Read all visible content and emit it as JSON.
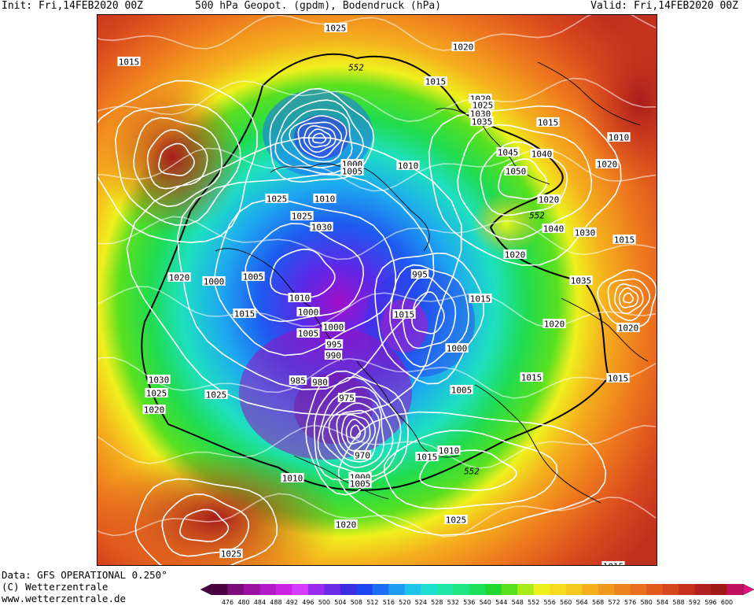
{
  "header": {
    "init": "Init: Fri,14FEB2020 00Z",
    "title": "500 hPa Geopot. (gpdm), Bodendruck (hPa)",
    "valid": "Valid: Fri,14FEB2020 00Z"
  },
  "footer": {
    "data_line": "Data: GFS OPERATIONAL 0.250°",
    "copyright": "(C) Wetterzentrale",
    "url": "www.wetterzentrale.de"
  },
  "legend": {
    "ticks": [
      "476",
      "480",
      "484",
      "488",
      "492",
      "496",
      "500",
      "504",
      "508",
      "512",
      "516",
      "520",
      "524",
      "528",
      "532",
      "536",
      "540",
      "544",
      "548",
      "552",
      "556",
      "560",
      "564",
      "568",
      "572",
      "576",
      "580",
      "584",
      "588",
      "592",
      "596",
      "600"
    ],
    "colors": [
      "#4a0040",
      "#7a0d7a",
      "#9b10a0",
      "#b21ac8",
      "#cc22e6",
      "#d63cff",
      "#9a2cf0",
      "#6a2ae8",
      "#3a2ee0",
      "#1e46f0",
      "#1e6ef5",
      "#1e9cf2",
      "#1ec4ec",
      "#1ee0d2",
      "#1ee6a6",
      "#1ee680",
      "#1ee05a",
      "#20d830",
      "#58e020",
      "#a8ec1a",
      "#f0f01e",
      "#f5dc1e",
      "#f5c81e",
      "#f5b01e",
      "#f29a1e",
      "#ee841e",
      "#e8701e",
      "#e05a1e",
      "#d8461e",
      "#c8301e",
      "#b0201e",
      "#a01818",
      "#c01060"
    ]
  },
  "map": {
    "contour_552_label": "552",
    "isobar_labels": [
      "1025",
      "1015",
      "1020",
      "552",
      "1015",
      "1020",
      "1025",
      "1030",
      "1035",
      "1015",
      "1010",
      "1000",
      "1005",
      "1010",
      "1045",
      "1040",
      "1050",
      "1020",
      "1025",
      "1010",
      "1020",
      "552",
      "1025",
      "1030",
      "1040",
      "1030",
      "1015",
      "1020",
      "1000",
      "1005",
      "995",
      "1020",
      "1035",
      "1015",
      "1015",
      "1010",
      "1000",
      "1015",
      "1020",
      "1000",
      "1005",
      "995",
      "990",
      "985",
      "980",
      "975",
      "1000",
      "1005",
      "1030",
      "1025",
      "1020",
      "1015",
      "1025",
      "1015",
      "1020",
      "970",
      "1015",
      "1010",
      "552",
      "1000",
      "1005",
      "1010",
      "1020",
      "1025",
      "1025",
      "1015"
    ]
  }
}
